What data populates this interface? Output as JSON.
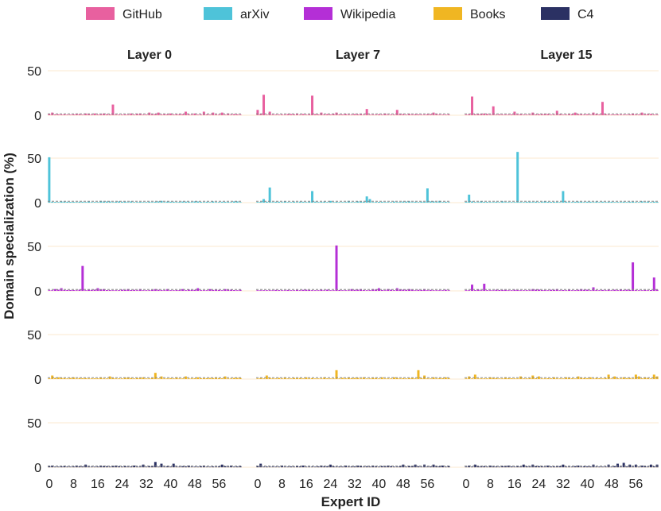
{
  "chart_data": {
    "type": "bar",
    "ylabel": "Domain specialization (%)",
    "xlabel": "Expert ID",
    "ylim": [
      0,
      60
    ],
    "yticks": [
      0,
      50
    ],
    "xticks": [
      0,
      8,
      16,
      24,
      32,
      40,
      48,
      56
    ],
    "num_experts": 64,
    "layers": [
      "Layer 0",
      "Layer 7",
      "Layer 15"
    ],
    "legend": [
      {
        "name": "GitHub",
        "color": "#e8609f"
      },
      {
        "name": "arXiv",
        "color": "#4ec3d9"
      },
      {
        "name": "Wikipedia",
        "color": "#b42fd6"
      },
      {
        "name": "Books",
        "color": "#f0b622"
      },
      {
        "name": "C4",
        "color": "#2b3163"
      }
    ],
    "baseline_note": "dashed line at uniform routing level (1.56%)",
    "rows": [
      {
        "domain": "GitHub",
        "color": "#e8609f",
        "panels": [
          {
            "layer": "Layer 0",
            "peaks": [
              [
                1,
                3
              ],
              [
                3,
                1
              ],
              [
                12,
                2
              ],
              [
                15,
                2
              ],
              [
                18,
                2
              ],
              [
                21,
                12
              ],
              [
                27,
                2
              ],
              [
                30,
                2
              ],
              [
                33,
                3
              ],
              [
                36,
                3
              ],
              [
                40,
                2
              ],
              [
                42,
                1
              ],
              [
                45,
                4
              ],
              [
                48,
                2
              ],
              [
                51,
                4
              ],
              [
                54,
                3
              ],
              [
                57,
                3
              ],
              [
                59,
                2
              ],
              [
                62,
                1
              ]
            ]
          },
          {
            "layer": "Layer 7",
            "peaks": [
              [
                0,
                6
              ],
              [
                2,
                23
              ],
              [
                4,
                4
              ],
              [
                13,
                2
              ],
              [
                18,
                22
              ],
              [
                21,
                3
              ],
              [
                26,
                3
              ],
              [
                36,
                7
              ],
              [
                42,
                2
              ],
              [
                46,
                6
              ],
              [
                52,
                1
              ],
              [
                58,
                3
              ]
            ]
          },
          {
            "layer": "Layer 15",
            "peaks": [
              [
                2,
                21
              ],
              [
                6,
                2
              ],
              [
                9,
                10
              ],
              [
                16,
                4
              ],
              [
                22,
                3
              ],
              [
                30,
                5
              ],
              [
                36,
                3
              ],
              [
                42,
                3
              ],
              [
                45,
                15
              ],
              [
                55,
                2
              ],
              [
                58,
                3
              ]
            ]
          }
        ]
      },
      {
        "domain": "arXiv",
        "color": "#4ec3d9",
        "panels": [
          {
            "layer": "Layer 0",
            "peaks": [
              [
                0,
                51
              ],
              [
                6,
                1
              ],
              [
                10,
                1
              ],
              [
                17,
                2
              ],
              [
                24,
                1
              ],
              [
                33,
                1
              ],
              [
                37,
                2
              ],
              [
                40,
                1
              ],
              [
                46,
                1
              ],
              [
                52,
                1
              ]
            ]
          },
          {
            "layer": "Layer 7",
            "peaks": [
              [
                2,
                4
              ],
              [
                4,
                17
              ],
              [
                18,
                13
              ],
              [
                24,
                2
              ],
              [
                30,
                2
              ],
              [
                36,
                7
              ],
              [
                37,
                4
              ],
              [
                52,
                1
              ],
              [
                56,
                16
              ],
              [
                60,
                2
              ]
            ]
          },
          {
            "layer": "Layer 15",
            "peaks": [
              [
                1,
                9
              ],
              [
                17,
                57
              ],
              [
                32,
                13
              ],
              [
                33,
                1
              ],
              [
                40,
                1
              ],
              [
                48,
                1
              ],
              [
                54,
                1
              ]
            ]
          }
        ]
      },
      {
        "domain": "Wikipedia",
        "color": "#b42fd6",
        "panels": [
          {
            "layer": "Layer 0",
            "peaks": [
              [
                2,
                2
              ],
              [
                4,
                3
              ],
              [
                11,
                28
              ],
              [
                16,
                3
              ],
              [
                18,
                2
              ],
              [
                26,
                2
              ],
              [
                30,
                2
              ],
              [
                35,
                2
              ],
              [
                39,
                2
              ],
              [
                44,
                2
              ],
              [
                49,
                3
              ],
              [
                53,
                2
              ],
              [
                58,
                2
              ]
            ]
          },
          {
            "layer": "Layer 7",
            "peaks": [
              [
                10,
                1
              ],
              [
                26,
                51
              ],
              [
                31,
                2
              ],
              [
                34,
                2
              ],
              [
                38,
                2
              ],
              [
                40,
                3
              ],
              [
                43,
                2
              ],
              [
                46,
                3
              ],
              [
                50,
                2
              ],
              [
                55,
                2
              ]
            ]
          },
          {
            "layer": "Layer 15",
            "peaks": [
              [
                2,
                7
              ],
              [
                6,
                8
              ],
              [
                12,
                1
              ],
              [
                22,
                2
              ],
              [
                30,
                2
              ],
              [
                38,
                2
              ],
              [
                42,
                4
              ],
              [
                55,
                32
              ],
              [
                62,
                15
              ]
            ]
          }
        ]
      },
      {
        "domain": "Books",
        "color": "#f0b622",
        "panels": [
          {
            "layer": "Layer 0",
            "peaks": [
              [
                1,
                4
              ],
              [
                3,
                2
              ],
              [
                8,
                2
              ],
              [
                12,
                1
              ],
              [
                17,
                2
              ],
              [
                20,
                3
              ],
              [
                26,
                2
              ],
              [
                31,
                2
              ],
              [
                35,
                7
              ],
              [
                37,
                3
              ],
              [
                42,
                2
              ],
              [
                45,
                3
              ],
              [
                49,
                2
              ],
              [
                55,
                2
              ],
              [
                58,
                3
              ]
            ]
          },
          {
            "layer": "Layer 7",
            "peaks": [
              [
                3,
                4
              ],
              [
                9,
                2
              ],
              [
                16,
                2
              ],
              [
                22,
                2
              ],
              [
                26,
                10
              ],
              [
                30,
                2
              ],
              [
                35,
                2
              ],
              [
                41,
                2
              ],
              [
                45,
                2
              ],
              [
                53,
                10
              ],
              [
                55,
                4
              ],
              [
                58,
                2
              ],
              [
                62,
                2
              ]
            ]
          },
          {
            "layer": "Layer 15",
            "peaks": [
              [
                1,
                3
              ],
              [
                3,
                5
              ],
              [
                8,
                2
              ],
              [
                13,
                2
              ],
              [
                18,
                3
              ],
              [
                22,
                4
              ],
              [
                24,
                3
              ],
              [
                29,
                2
              ],
              [
                33,
                2
              ],
              [
                37,
                3
              ],
              [
                41,
                2
              ],
              [
                47,
                5
              ],
              [
                49,
                3
              ],
              [
                52,
                2
              ],
              [
                56,
                5
              ],
              [
                57,
                3
              ],
              [
                59,
                2
              ],
              [
                62,
                5
              ],
              [
                63,
                3
              ]
            ]
          }
        ]
      },
      {
        "domain": "C4",
        "color": "#2b3163",
        "panels": [
          {
            "layer": "Layer 0",
            "peaks": [
              [
                1,
                2
              ],
              [
                4,
                1
              ],
              [
                9,
                2
              ],
              [
                12,
                3
              ],
              [
                17,
                2
              ],
              [
                22,
                2
              ],
              [
                28,
                2
              ],
              [
                31,
                3
              ],
              [
                35,
                6
              ],
              [
                37,
                4
              ],
              [
                41,
                4
              ],
              [
                46,
                2
              ],
              [
                51,
                2
              ],
              [
                57,
                3
              ],
              [
                60,
                2
              ]
            ]
          },
          {
            "layer": "Layer 7",
            "peaks": [
              [
                1,
                4
              ],
              [
                8,
                2
              ],
              [
                15,
                2
              ],
              [
                21,
                2
              ],
              [
                24,
                3
              ],
              [
                29,
                2
              ],
              [
                33,
                2
              ],
              [
                38,
                2
              ],
              [
                43,
                2
              ],
              [
                48,
                3
              ],
              [
                52,
                3
              ],
              [
                55,
                3
              ],
              [
                58,
                3
              ],
              [
                61,
                2
              ]
            ]
          },
          {
            "layer": "Layer 15",
            "peaks": [
              [
                1,
                2
              ],
              [
                3,
                3
              ],
              [
                8,
                2
              ],
              [
                14,
                2
              ],
              [
                19,
                3
              ],
              [
                22,
                3
              ],
              [
                27,
                2
              ],
              [
                32,
                3
              ],
              [
                37,
                2
              ],
              [
                42,
                3
              ],
              [
                47,
                3
              ],
              [
                50,
                4
              ],
              [
                52,
                5
              ],
              [
                54,
                3
              ],
              [
                56,
                3
              ],
              [
                58,
                2
              ],
              [
                61,
                3
              ],
              [
                63,
                3
              ]
            ]
          }
        ]
      }
    ]
  }
}
